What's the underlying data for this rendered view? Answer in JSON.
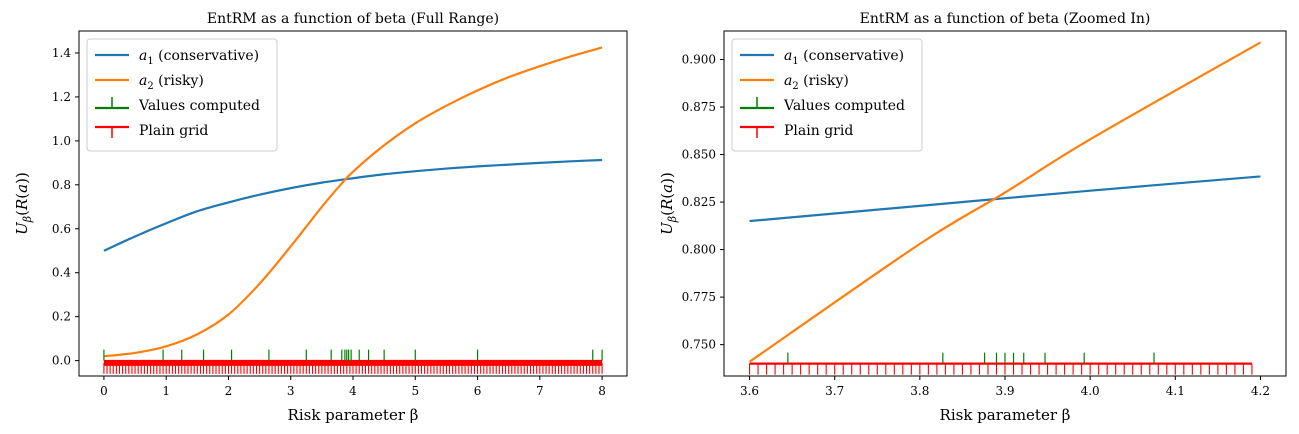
{
  "chart_data": [
    {
      "type": "line",
      "title": "EntRM as a function of beta (Full Range)",
      "xlabel": "Risk parameter β",
      "ylabel": "Uβ(R(a))",
      "xlim": [
        -0.4,
        8.4
      ],
      "ylim": [
        -0.07,
        1.5
      ],
      "xticks": [
        0,
        1,
        2,
        3,
        4,
        5,
        6,
        7,
        8
      ],
      "yticks": [
        0.0,
        0.2,
        0.4,
        0.6,
        0.8,
        1.0,
        1.2,
        1.4
      ],
      "ytick_labels": [
        "0.0",
        "0.2",
        "0.4",
        "0.6",
        "0.8",
        "1.0",
        "1.2",
        "1.4"
      ],
      "legend": {
        "position": "upper-left"
      },
      "series": [
        {
          "name": "a1 (conservative)",
          "name_base": "a",
          "name_sub": "1",
          "name_rest": " (conservative)",
          "color": "#1f77b4",
          "x": [
            0,
            0.5,
            1,
            1.5,
            2,
            2.5,
            3,
            3.5,
            4,
            4.5,
            5,
            5.5,
            6,
            6.5,
            7,
            7.5,
            8
          ],
          "y": [
            0.5,
            0.565,
            0.625,
            0.68,
            0.72,
            0.755,
            0.785,
            0.81,
            0.83,
            0.848,
            0.862,
            0.874,
            0.884,
            0.892,
            0.9,
            0.907,
            0.913
          ]
        },
        {
          "name": "a2 (risky)",
          "name_base": "a",
          "name_sub": "2",
          "name_rest": " (risky)",
          "color": "#ff7f0e",
          "x": [
            0,
            0.5,
            1,
            1.5,
            2,
            2.5,
            3,
            3.5,
            3.8,
            4,
            4.5,
            5,
            5.5,
            6,
            6.5,
            7,
            7.5,
            8
          ],
          "y": [
            0.02,
            0.035,
            0.065,
            0.12,
            0.21,
            0.35,
            0.52,
            0.7,
            0.8,
            0.86,
            0.98,
            1.08,
            1.16,
            1.23,
            1.29,
            1.34,
            1.385,
            1.425
          ]
        }
      ],
      "markers": [
        {
          "name": "Values computed",
          "color": "#008000",
          "style": "tick-up",
          "y": 0.0,
          "x": [
            0,
            0.95,
            1.25,
            1.6,
            2.05,
            2.65,
            3.25,
            3.65,
            3.82,
            3.87,
            3.9,
            3.93,
            3.97,
            4.1,
            4.25,
            4.5,
            5.0,
            6.0,
            7.85,
            8.0
          ]
        },
        {
          "name": "Plain grid",
          "color": "#ff0000",
          "style": "tick-down",
          "y": -0.01,
          "x_start": 0,
          "x_end": 8,
          "x_step": 0.05
        }
      ]
    },
    {
      "type": "line",
      "title": "EntRM as a function of beta (Zoomed In)",
      "xlabel": "Risk parameter β",
      "ylabel": "Uβ(R(a))",
      "xlim": [
        3.57,
        4.23
      ],
      "ylim": [
        0.7335,
        0.915
      ],
      "xticks": [
        3.6,
        3.7,
        3.8,
        3.9,
        4.0,
        4.1,
        4.2
      ],
      "xtick_labels": [
        "3.6",
        "3.7",
        "3.8",
        "3.9",
        "4.0",
        "4.1",
        "4.2"
      ],
      "yticks": [
        0.75,
        0.775,
        0.8,
        0.825,
        0.85,
        0.875,
        0.9
      ],
      "ytick_labels": [
        "0.750",
        "0.775",
        "0.800",
        "0.825",
        "0.850",
        "0.875",
        "0.900"
      ],
      "legend": {
        "position": "upper-left"
      },
      "series": [
        {
          "name": "a1 (conservative)",
          "name_base": "a",
          "name_sub": "1",
          "name_rest": " (conservative)",
          "color": "#1f77b4",
          "x": [
            3.6,
            3.8,
            4.0,
            4.2
          ],
          "y": [
            0.815,
            0.823,
            0.831,
            0.8385
          ]
        },
        {
          "name": "a2 (risky)",
          "name_base": "a",
          "name_sub": "2",
          "name_rest": " (risky)",
          "color": "#ff7f0e",
          "x": [
            3.6,
            3.8,
            3.9,
            4.0,
            4.2
          ],
          "y": [
            0.741,
            0.803,
            0.83,
            0.858,
            0.909
          ]
        }
      ],
      "markers": [
        {
          "name": "Values computed",
          "color": "#008000",
          "style": "tick-up",
          "y": 0.74,
          "x": [
            3.645,
            3.827,
            3.876,
            3.89,
            3.9,
            3.91,
            3.922,
            3.947,
            3.993,
            4.075
          ]
        },
        {
          "name": "Plain grid",
          "color": "#ff0000",
          "style": "tick-down",
          "y": 0.74,
          "x_start": 3.6,
          "x_end": 4.19,
          "x_step": 0.01
        }
      ]
    }
  ]
}
